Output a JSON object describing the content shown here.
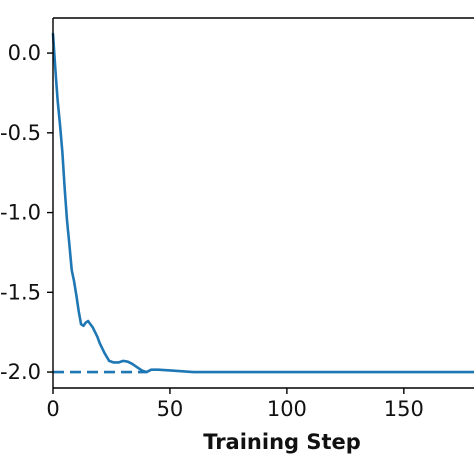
{
  "chart_data": {
    "type": "line",
    "title": "",
    "xlabel": "Training Step",
    "ylabel": "",
    "xlim": [
      0,
      180
    ],
    "ylim": [
      -2.1,
      0.22
    ],
    "grid": false,
    "legend": "none",
    "xticks": [
      0,
      50,
      100,
      150
    ],
    "xtick_labels": [
      "0",
      "50",
      "100",
      "150"
    ],
    "yticks": [
      0.0,
      -0.5,
      -1.0,
      -1.5,
      -2.0
    ],
    "ytick_labels": [
      "0.0",
      "-0.5",
      "-1.0",
      "-1.5",
      "-2.0"
    ],
    "series": [
      {
        "color": "#1f77b4",
        "x": [
          0,
          1,
          2,
          3,
          4,
          5,
          6,
          7,
          8,
          9,
          10,
          11,
          12,
          13,
          14,
          15,
          16,
          17,
          18,
          19,
          20,
          22,
          24,
          26,
          28,
          30,
          32,
          34,
          36,
          38,
          40,
          42,
          45,
          50,
          60,
          70,
          80,
          100,
          120,
          140,
          160,
          180
        ],
        "y": [
          0.12,
          -0.1,
          -0.3,
          -0.45,
          -0.62,
          -0.85,
          -1.05,
          -1.2,
          -1.36,
          -1.43,
          -1.52,
          -1.62,
          -1.7,
          -1.71,
          -1.69,
          -1.68,
          -1.7,
          -1.72,
          -1.75,
          -1.78,
          -1.82,
          -1.88,
          -1.93,
          -1.94,
          -1.94,
          -1.93,
          -1.935,
          -1.95,
          -1.97,
          -1.99,
          -2.0,
          -1.985,
          -1.985,
          -1.99,
          -2.0,
          -2.0,
          -2.0,
          -2.0,
          -2.0,
          -2.0,
          -2.0,
          -2.0
        ]
      }
    ],
    "reference_line": {
      "y": -2.0,
      "style": "dashed",
      "color": "#1f77b4",
      "x_range": [
        0,
        40
      ]
    }
  }
}
